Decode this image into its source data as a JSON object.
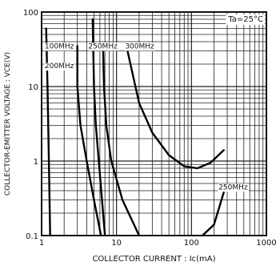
{
  "chart_data": {
    "type": "line",
    "title": "",
    "xlabel": "COLLECTOR  CURRENT : Ic(mA)",
    "ylabel": "COLLECTOR-EMITTER  VOLTAGE : VCE(V)",
    "x_scale": "log",
    "y_scale": "log",
    "xlim": [
      1,
      1000
    ],
    "ylim": [
      0.1,
      100
    ],
    "grid": true,
    "x_ticks": [
      {
        "value": 1,
        "label": "1"
      },
      {
        "value": 10,
        "label": "10"
      },
      {
        "value": 100,
        "label": "100"
      },
      {
        "value": 1000,
        "label": "1000"
      }
    ],
    "y_ticks": [
      {
        "value": 100,
        "label": "100"
      },
      {
        "value": 10,
        "label": "10"
      },
      {
        "value": 1,
        "label": "1"
      },
      {
        "value": 0.1,
        "label": "0.1"
      }
    ],
    "annotation": "Ta=25°C",
    "curve_labels": [
      {
        "text": "100MHz",
        "x": 1.1,
        "y": 35
      },
      {
        "text": "250MHz",
        "x": 4.2,
        "y": 35
      },
      {
        "text": "300MHz",
        "x": 13.0,
        "y": 35
      },
      {
        "text": "200MHz",
        "x": 1.1,
        "y": 19
      },
      {
        "text": "250MHz",
        "x": 230,
        "y": 0.45
      }
    ],
    "series": [
      {
        "points": [
          [
            1.3,
            0.1
          ],
          [
            1.25,
            1
          ],
          [
            1.2,
            10
          ],
          [
            1.15,
            60
          ]
        ]
      },
      {
        "points": [
          [
            6.2,
            0.1
          ],
          [
            5.0,
            0.3
          ],
          [
            4.0,
            1
          ],
          [
            3.3,
            3
          ],
          [
            3.0,
            10
          ],
          [
            3.0,
            35
          ]
        ]
      },
      {
        "points": [
          [
            7.0,
            0.1
          ],
          [
            6.4,
            0.3
          ],
          [
            5.8,
            1
          ],
          [
            5.3,
            3
          ],
          [
            5.0,
            10
          ],
          [
            4.9,
            30
          ],
          [
            4.8,
            80
          ]
        ]
      },
      {
        "points": [
          [
            20,
            0.1
          ],
          [
            12,
            0.3
          ],
          [
            8.5,
            1
          ],
          [
            7.3,
            3
          ],
          [
            6.8,
            10
          ],
          [
            6.6,
            35
          ]
        ]
      },
      {
        "points": [
          [
            14,
            30
          ],
          [
            20,
            6
          ],
          [
            30,
            2.4
          ],
          [
            50,
            1.2
          ],
          [
            80,
            0.85
          ],
          [
            120,
            0.8
          ],
          [
            180,
            0.95
          ],
          [
            270,
            1.4
          ]
        ]
      },
      {
        "points": [
          [
            140,
            0.1
          ],
          [
            200,
            0.14
          ],
          [
            270,
            0.38
          ]
        ]
      }
    ]
  }
}
